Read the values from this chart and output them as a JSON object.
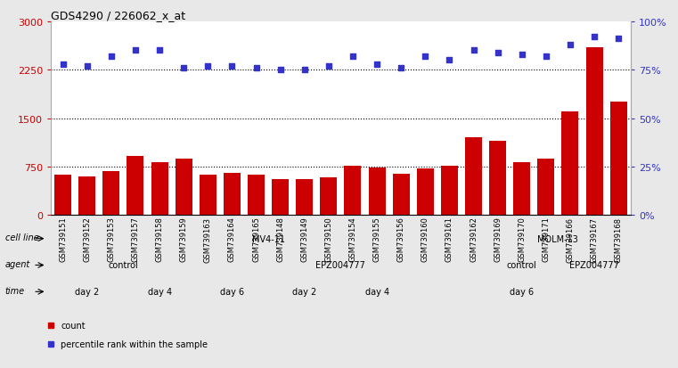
{
  "title": "GDS4290 / 226062_x_at",
  "samples": [
    "GSM739151",
    "GSM739152",
    "GSM739153",
    "GSM739157",
    "GSM739158",
    "GSM739159",
    "GSM739163",
    "GSM739164",
    "GSM739165",
    "GSM739148",
    "GSM739149",
    "GSM739150",
    "GSM739154",
    "GSM739155",
    "GSM739156",
    "GSM739160",
    "GSM739161",
    "GSM739162",
    "GSM739169",
    "GSM739170",
    "GSM739171",
    "GSM739166",
    "GSM739167",
    "GSM739168"
  ],
  "counts": [
    620,
    600,
    680,
    920,
    820,
    870,
    620,
    650,
    620,
    560,
    560,
    580,
    760,
    730,
    640,
    720,
    760,
    1200,
    1150,
    820,
    870,
    1600,
    2600,
    1750
  ],
  "percentile_ranks": [
    78,
    77,
    82,
    85,
    85,
    76,
    77,
    77,
    76,
    75,
    75,
    77,
    82,
    78,
    76,
    82,
    80,
    85,
    84,
    83,
    82,
    88,
    92,
    91
  ],
  "bar_color": "#cc0000",
  "dot_color": "#3333cc",
  "ylim_left": [
    0,
    3000
  ],
  "ylim_right": [
    0,
    100
  ],
  "yticks_left": [
    0,
    750,
    1500,
    2250,
    3000
  ],
  "yticks_right": [
    0,
    25,
    50,
    75,
    100
  ],
  "ytick_labels_right": [
    "0%",
    "25%",
    "50%",
    "75%",
    "100%"
  ],
  "grid_values": [
    750,
    1500,
    2250
  ],
  "cell_line_row": {
    "label": "cell line",
    "segments": [
      {
        "text": "MV4-11",
        "start": 0,
        "end": 18,
        "color": "#aaddaa"
      },
      {
        "text": "MOLM-13",
        "start": 18,
        "end": 24,
        "color": "#44cc44"
      }
    ]
  },
  "agent_row": {
    "label": "agent",
    "segments": [
      {
        "text": "control",
        "start": 0,
        "end": 6,
        "color": "#bbaaee"
      },
      {
        "text": "EPZ004777",
        "start": 6,
        "end": 18,
        "color": "#7766cc"
      },
      {
        "text": "control",
        "start": 18,
        "end": 21,
        "color": "#bbaaee"
      },
      {
        "text": "EPZ004777",
        "start": 21,
        "end": 24,
        "color": "#7766cc"
      }
    ]
  },
  "time_row": {
    "label": "time",
    "segments": [
      {
        "text": "day 2",
        "start": 0,
        "end": 3,
        "color": "#f5cccc"
      },
      {
        "text": "day 4",
        "start": 3,
        "end": 6,
        "color": "#dd8888"
      },
      {
        "text": "day 6",
        "start": 6,
        "end": 9,
        "color": "#cc6666"
      },
      {
        "text": "day 2",
        "start": 9,
        "end": 12,
        "color": "#f5cccc"
      },
      {
        "text": "day 4",
        "start": 12,
        "end": 15,
        "color": "#dd8888"
      },
      {
        "text": "day 6",
        "start": 15,
        "end": 24,
        "color": "#cc6666"
      }
    ]
  },
  "legend_items": [
    {
      "label": "count",
      "color": "#cc0000"
    },
    {
      "label": "percentile rank within the sample",
      "color": "#3333cc"
    }
  ],
  "fig_bg": "#e8e8e8",
  "plot_bg": "#ffffff",
  "row_bg": "#e8e8e8"
}
